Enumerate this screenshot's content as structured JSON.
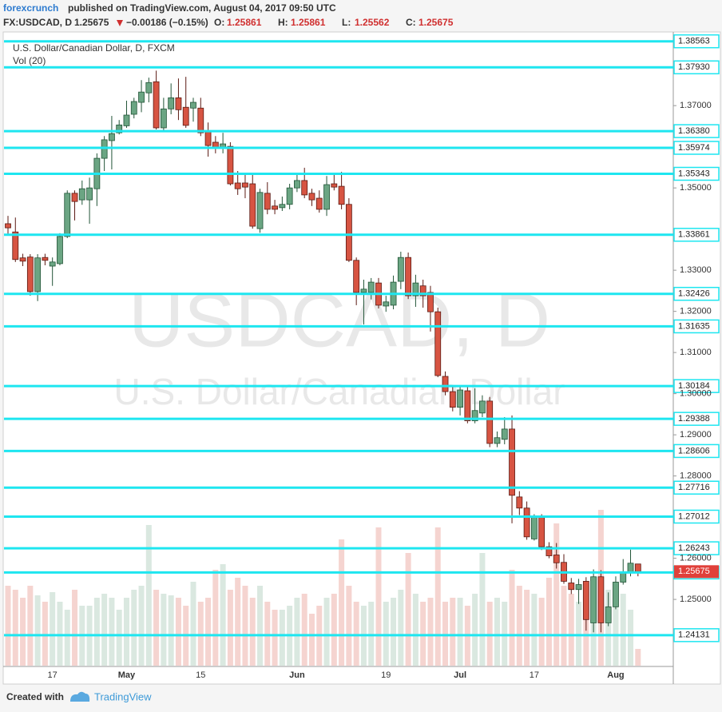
{
  "header": {
    "author": "forexcrunch",
    "published": "published on TradingView.com, August 04, 2017 09:50 UTC",
    "symbol": "FX:USDCAD, D",
    "price": "1.25675",
    "change": "−0.00186 (−0.15%)",
    "ohlc": [
      {
        "key": "O:",
        "value": "1.25861"
      },
      {
        "key": "H:",
        "value": "1.25861"
      },
      {
        "key": "L:",
        "value": "1.25562"
      },
      {
        "key": "C:",
        "value": "1.25675"
      }
    ]
  },
  "footer": {
    "created": "Created with",
    "brand": "TradingView"
  },
  "chart_data": {
    "type": "candlestick",
    "title": "U.S. Dollar/Canadian Dollar, D, FXCM",
    "indicator": "Vol (20)",
    "watermark": "USDCAD, D",
    "watermark_sub": "U.S. Dollar/Canadian Dollar",
    "categories": [
      null,
      null,
      null,
      null,
      null,
      null,
      "17",
      null,
      null,
      null,
      null,
      null,
      null,
      null,
      null,
      null,
      "May",
      null,
      null,
      null,
      null,
      null,
      null,
      null,
      null,
      null,
      "15",
      null,
      null,
      null,
      null,
      null,
      null,
      null,
      null,
      null,
      null,
      null,
      null,
      "Jun",
      null,
      null,
      null,
      null,
      null,
      null,
      null,
      null,
      null,
      null,
      null,
      "19",
      null,
      null,
      null,
      null,
      null,
      null,
      null,
      null,
      null,
      "Jul",
      null,
      null,
      null,
      null,
      null,
      null,
      null,
      null,
      null,
      "17",
      null,
      null,
      null,
      null,
      null,
      null,
      null,
      null,
      null,
      null,
      "Aug",
      null,
      null,
      null
    ],
    "open": [
      1.3413,
      1.3393,
      1.333,
      1.3332,
      1.3248,
      1.3331,
      1.331,
      1.3316,
      1.3382,
      1.3487,
      1.3471,
      1.3471,
      1.3498,
      1.3572,
      1.3615,
      1.3634,
      1.3651,
      1.3679,
      1.3708,
      1.3731,
      1.3758,
      1.3646,
      1.3692,
      1.3719,
      1.3696,
      1.3694,
      1.3694,
      1.3636,
      1.3611,
      1.3599,
      1.3601,
      1.3512,
      1.3512,
      1.351,
      1.3401,
      1.3487,
      1.3456,
      1.3452,
      1.346,
      1.35,
      1.3518,
      1.3487,
      1.3475,
      1.3448,
      1.351,
      1.3504,
      1.346,
      1.3324,
      1.3246,
      1.3246,
      1.3269,
      1.3213,
      1.3215,
      1.3273,
      1.3331,
      1.3238,
      1.3262,
      1.3246,
      1.3199,
      1.3042,
      1.3005,
      1.2967,
      1.3007,
      1.2934,
      1.2953,
      1.2982,
      1.2879,
      1.2889,
      1.2914,
      1.2749,
      1.2722,
      1.2647,
      1.27,
      1.2628,
      1.2608,
      1.259,
      1.254,
      1.2524,
      1.2544,
      1.2443,
      1.2555,
      1.2443,
      1.2482,
      1.2542,
      1.2567,
      1.25861
    ],
    "high": [
      1.3432,
      1.3428,
      1.334,
      1.3339,
      1.3339,
      1.334,
      1.3331,
      1.339,
      1.3494,
      1.3494,
      1.3518,
      1.3525,
      1.3584,
      1.3626,
      1.3675,
      1.3665,
      1.3712,
      1.3719,
      1.3762,
      1.3768,
      1.3785,
      1.3719,
      1.3754,
      1.3766,
      1.377,
      1.3719,
      1.3719,
      1.3659,
      1.3626,
      1.3634,
      1.3611,
      1.3541,
      1.3533,
      1.3537,
      1.3498,
      1.3514,
      1.3471,
      1.3479,
      1.351,
      1.3533,
      1.3549,
      1.3498,
      1.3494,
      1.3529,
      1.3533,
      1.3539,
      1.3475,
      1.3331,
      1.3277,
      1.3281,
      1.3281,
      1.3238,
      1.3287,
      1.3345,
      1.3343,
      1.3289,
      1.3277,
      1.3262,
      1.3209,
      1.3054,
      1.3017,
      1.3017,
      1.3017,
      1.3013,
      1.2996,
      1.2992,
      1.2908,
      1.2943,
      1.2947,
      1.2763,
      1.2738,
      1.2707,
      1.2707,
      1.2639,
      1.2637,
      1.261,
      1.2552,
      1.255,
      1.2554,
      1.2573,
      1.2571,
      1.2517,
      1.2556,
      1.2598,
      1.2621,
      1.25861
    ],
    "low": [
      1.3384,
      1.332,
      1.331,
      1.3238,
      1.3225,
      1.3312,
      1.3262,
      1.3312,
      1.3378,
      1.3421,
      1.3459,
      1.3413,
      1.3456,
      1.3541,
      1.3545,
      1.363,
      1.3646,
      1.3669,
      1.3684,
      1.3708,
      1.3642,
      1.364,
      1.3679,
      1.3665,
      1.3646,
      1.3661,
      1.3626,
      1.3576,
      1.3584,
      1.3584,
      1.3506,
      1.3483,
      1.3475,
      1.3401,
      1.3391,
      1.3436,
      1.3436,
      1.3444,
      1.3448,
      1.349,
      1.3475,
      1.3456,
      1.344,
      1.3432,
      1.3494,
      1.3448,
      1.332,
      1.3215,
      1.3168,
      1.3229,
      1.3207,
      1.3199,
      1.3205,
      1.3254,
      1.323,
      1.3211,
      1.3209,
      1.3151,
      1.304,
      1.2996,
      1.2957,
      1.2947,
      1.2928,
      1.2928,
      1.2943,
      1.287,
      1.287,
      1.2877,
      1.2685,
      1.2705,
      1.2645,
      1.2643,
      1.262,
      1.26,
      1.2575,
      1.2538,
      1.2513,
      1.2489,
      1.2424,
      1.242,
      1.242,
      1.2435,
      1.2476,
      1.2536,
      1.2556,
      1.25562
    ],
    "close": [
      1.3403,
      1.3326,
      1.3322,
      1.3248,
      1.333,
      1.3324,
      1.332,
      1.3382,
      1.3487,
      1.3467,
      1.3498,
      1.35,
      1.3572,
      1.3617,
      1.3632,
      1.3653,
      1.3677,
      1.371,
      1.3733,
      1.3756,
      1.3646,
      1.3692,
      1.3719,
      1.369,
      1.3652,
      1.3708,
      1.3634,
      1.3603,
      1.3599,
      1.3607,
      1.351,
      1.3498,
      1.3502,
      1.3407,
      1.3489,
      1.3448,
      1.3448,
      1.346,
      1.35,
      1.3518,
      1.3483,
      1.3471,
      1.3448,
      1.3508,
      1.3502,
      1.346,
      1.3324,
      1.3246,
      1.3254,
      1.3271,
      1.3215,
      1.3223,
      1.3271,
      1.3331,
      1.3238,
      1.3269,
      1.3238,
      1.3199,
      1.3044,
      1.3005,
      1.2967,
      1.3009,
      1.2934,
      1.2959,
      1.2982,
      1.2879,
      1.2893,
      1.2914,
      1.2753,
      1.2722,
      1.2652,
      1.27,
      1.2628,
      1.2606,
      1.2589,
      1.2544,
      1.2524,
      1.2536,
      1.2451,
      1.2555,
      1.2443,
      1.2482,
      1.2542,
      1.2567,
      1.2588,
      1.25675
    ],
    "volume": [
      100,
      95,
      85,
      100,
      88,
      80,
      92,
      80,
      70,
      95,
      75,
      75,
      85,
      90,
      85,
      70,
      85,
      95,
      100,
      176,
      95,
      90,
      88,
      85,
      75,
      105,
      80,
      85,
      120,
      127,
      95,
      110,
      100,
      85,
      100,
      80,
      70,
      70,
      75,
      85,
      90,
      65,
      75,
      85,
      90,
      158,
      100,
      80,
      75,
      80,
      173,
      80,
      85,
      95,
      141,
      90,
      80,
      85,
      173,
      80,
      85,
      85,
      75,
      90,
      141,
      80,
      85,
      80,
      120,
      100,
      95,
      90,
      85,
      110,
      178,
      100,
      90,
      80,
      100,
      110,
      195,
      95,
      85,
      90,
      70,
      21
    ],
    "up_color": "#6ba583",
    "down_color": "#d75442",
    "level_color": "#1ee6f0",
    "levels": [
      1.38563,
      {
        "value": 1.3793,
        "label": "1.37930"
      },
      {
        "value": 1.3638,
        "label": "1.36380"
      },
      1.35974,
      1.35343,
      1.33861,
      1.32426,
      1.31635,
      1.30184,
      1.29388,
      1.28606,
      1.27716,
      1.27012,
      1.26243,
      1.25654,
      1.24131
    ],
    "last_price": {
      "value": 1.25675,
      "label": "1.25675"
    },
    "ylim": [
      1.2339,
      1.3879
    ],
    "yticks": [
      {
        "value": 1.37,
        "label": "1.37000"
      },
      {
        "value": 1.35,
        "label": "1.35000"
      },
      {
        "value": 1.33,
        "label": "1.33000"
      },
      {
        "value": 1.32,
        "label": "1.32000"
      },
      {
        "value": 1.31,
        "label": "1.31000"
      },
      {
        "value": 1.3,
        "label": "1.30000"
      },
      {
        "value": 1.29,
        "label": "1.29000"
      },
      {
        "value": 1.28,
        "label": "1.28000"
      },
      {
        "value": 1.26,
        "label": "1.26000"
      },
      {
        "value": 1.25,
        "label": "1.25000"
      }
    ]
  }
}
